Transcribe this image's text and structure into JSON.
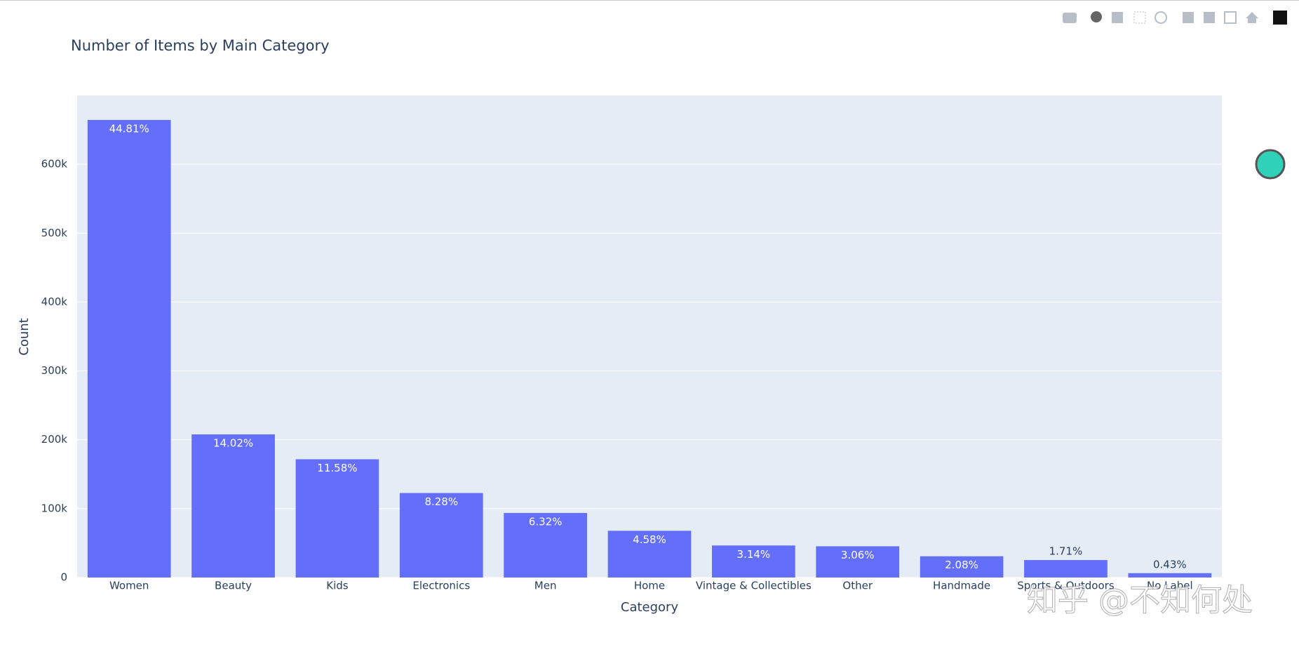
{
  "chart_data": {
    "type": "bar",
    "title": "Number of Items by Main Category",
    "x_label": "Category",
    "y_label": "Count",
    "categories": [
      "Women",
      "Beauty",
      "Kids",
      "Electronics",
      "Men",
      "Home",
      "Vintage & Collectibles",
      "Other",
      "Handmade",
      "Sports & Outdoors",
      "No Label"
    ],
    "values": [
      664385,
      207828,
      171689,
      122690,
      93680,
      67871,
      46530,
      45351,
      30842,
      25342,
      6327
    ],
    "value_labels": [
      "44.81%",
      "14.02%",
      "11.58%",
      "8.28%",
      "6.32%",
      "4.58%",
      "3.14%",
      "3.06%",
      "2.08%",
      "1.71%",
      "0.43%"
    ],
    "color": "#636efa",
    "ylim": [
      0,
      700000
    ],
    "yticks": [
      0,
      {
        "value": 100000,
        "label": "100k"
      },
      {
        "value": 200000,
        "label": "200k"
      },
      {
        "value": 300000,
        "label": "300k"
      },
      {
        "value": 400000,
        "label": "400k"
      },
      {
        "value": 500000,
        "label": "500k"
      },
      {
        "value": 600000,
        "label": "600k"
      }
    ],
    "grid": true
  },
  "watermark": "知乎 @不知何处"
}
